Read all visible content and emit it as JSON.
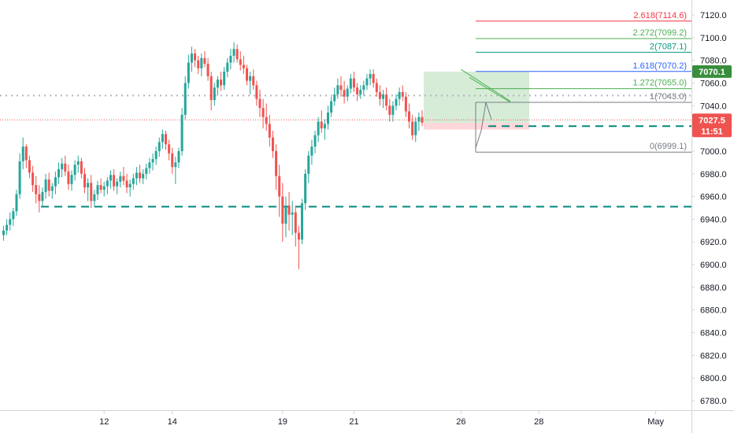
{
  "chart_data": {
    "type": "candlestick",
    "colors": {
      "up": "#26a69a",
      "down": "#ef5350",
      "fib_red": "#f23645",
      "fib_green": "#4caf50",
      "fib_blue": "#2962ff",
      "fib_teal": "#089981",
      "fib_gray": "#787b86",
      "dashed_level": "#00897b",
      "target_zone": "#c8e6c9",
      "stop_zone": "#ffcdd2",
      "last_price": "#ef5350",
      "target_badge": "#388e3c"
    },
    "y_ticks": [
      "7120.0",
      "7100.0",
      "7080.0",
      "7060.0",
      "7040.0",
      "7020.0",
      "7000.0",
      "6980.0",
      "6960.0",
      "6940.0",
      "6920.0",
      "6900.0",
      "6880.0",
      "6860.0",
      "6840.0",
      "6820.0",
      "6800.0",
      "6780.0"
    ],
    "ylim": [
      6771,
      7135
    ],
    "x_ticks": [
      {
        "label": "12",
        "bar": 31
      },
      {
        "label": "14",
        "bar": 52
      },
      {
        "label": "19",
        "bar": 86
      },
      {
        "label": "21",
        "bar": 108
      },
      {
        "label": "26",
        "bar": 141
      },
      {
        "label": "28",
        "bar": 165
      },
      {
        "label": "May",
        "bar": 201
      }
    ],
    "bar_count": 238,
    "fib_levels": [
      {
        "ratio": "2.618",
        "value": "7114.6",
        "label": "2.618(7114.6)",
        "color": "fib_red"
      },
      {
        "ratio": "2.272",
        "value": "7099.2",
        "label": "2.272(7099.2)",
        "color": "fib_green"
      },
      {
        "ratio": "2",
        "value": "7087.1",
        "label": "2(7087.1)",
        "color": "fib_teal"
      },
      {
        "ratio": "1.618",
        "value": "7070.2",
        "label": "1.618(7070.2)",
        "color": "fib_blue"
      },
      {
        "ratio": "1.272",
        "value": "7055.0",
        "label": "1.272(7055.0)",
        "color": "fib_green"
      },
      {
        "ratio": "1",
        "value": "7043.0",
        "label": "1(7043.0)",
        "color": "fib_gray"
      },
      {
        "ratio": "0",
        "value": "6999.1",
        "label": "0(6999.1)",
        "color": "fib_gray"
      }
    ],
    "extra_fib_line_value": 7134,
    "dashed_levels": [
      6951,
      7022
    ],
    "dotted_level": 7049,
    "last_price": {
      "value": 7027.5,
      "price_text": "7027.5",
      "countdown": "11:51"
    },
    "target": {
      "value": 7070.1,
      "text": "7070.1"
    },
    "trendline": {
      "from_bar": 141,
      "from_price": 7072,
      "to_bar": 166,
      "to_price": 7044
    },
    "candles": [
      [
        6926,
        6934,
        6921,
        6930
      ],
      [
        6930,
        6940,
        6926,
        6935
      ],
      [
        6935,
        6946,
        6930,
        6940
      ],
      [
        6940,
        6950,
        6934,
        6947
      ],
      [
        6947,
        6966,
        6943,
        6962
      ],
      [
        6962,
        6998,
        6958,
        6991
      ],
      [
        6991,
        7012,
        6984,
        7004
      ],
      [
        7004,
        7006,
        6985,
        6992
      ],
      [
        6992,
        6996,
        6976,
        6981
      ],
      [
        6981,
        6987,
        6964,
        6970
      ],
      [
        6970,
        6978,
        6954,
        6962
      ],
      [
        6962,
        6970,
        6946,
        6956
      ],
      [
        6956,
        6968,
        6952,
        6964
      ],
      [
        6964,
        6980,
        6958,
        6975
      ],
      [
        6975,
        6981,
        6960,
        6965
      ],
      [
        6965,
        6972,
        6958,
        6969
      ],
      [
        6969,
        6982,
        6962,
        6977
      ],
      [
        6977,
        6990,
        6971,
        6984
      ],
      [
        6984,
        6994,
        6977,
        6989
      ],
      [
        6989,
        6996,
        6978,
        6982
      ],
      [
        6982,
        6988,
        6966,
        6971
      ],
      [
        6971,
        6983,
        6965,
        6979
      ],
      [
        6979,
        6992,
        6974,
        6988
      ],
      [
        6988,
        6996,
        6981,
        6991
      ],
      [
        6991,
        6994,
        6976,
        6980
      ],
      [
        6980,
        6985,
        6963,
        6968
      ],
      [
        6968,
        6976,
        6956,
        6972
      ],
      [
        6972,
        6979,
        6950,
        6956
      ],
      [
        6956,
        6966,
        6951,
        6962
      ],
      [
        6962,
        6974,
        6957,
        6970
      ],
      [
        6970,
        6976,
        6963,
        6966
      ],
      [
        6966,
        6973,
        6960,
        6969
      ],
      [
        6969,
        6977,
        6962,
        6974
      ],
      [
        6974,
        6983,
        6967,
        6979
      ],
      [
        6979,
        6984,
        6965,
        6969
      ],
      [
        6969,
        6976,
        6962,
        6973
      ],
      [
        6973,
        6982,
        6968,
        6978
      ],
      [
        6978,
        6986,
        6970,
        6974
      ],
      [
        6974,
        6980,
        6963,
        6968
      ],
      [
        6968,
        6975,
        6960,
        6971
      ],
      [
        6971,
        6980,
        6966,
        6976
      ],
      [
        6976,
        6986,
        6970,
        6981
      ],
      [
        6981,
        6988,
        6972,
        6976
      ],
      [
        6976,
        6984,
        6971,
        6980
      ],
      [
        6980,
        6989,
        6975,
        6985
      ],
      [
        6985,
        6994,
        6980,
        6990
      ],
      [
        6990,
        6998,
        6983,
        6993
      ],
      [
        6993,
        7004,
        6988,
        7000
      ],
      [
        7000,
        7012,
        6995,
        7008
      ],
      [
        7008,
        7019,
        7002,
        7015
      ],
      [
        7015,
        7018,
        7001,
        7006
      ],
      [
        7006,
        7010,
        6992,
        6998
      ],
      [
        6998,
        7003,
        6980,
        6986
      ],
      [
        6986,
        6995,
        6971,
        6990
      ],
      [
        6990,
        7003,
        6985,
        7000
      ],
      [
        7000,
        7038,
        6996,
        7032
      ],
      [
        7032,
        7066,
        7028,
        7060
      ],
      [
        7060,
        7085,
        7055,
        7078
      ],
      [
        7078,
        7092,
        7070,
        7086
      ],
      [
        7086,
        7090,
        7074,
        7080
      ],
      [
        7080,
        7084,
        7068,
        7073
      ],
      [
        7073,
        7086,
        7066,
        7082
      ],
      [
        7082,
        7088,
        7074,
        7077
      ],
      [
        7077,
        7082,
        7062,
        7066
      ],
      [
        7066,
        7070,
        7036,
        7045
      ],
      [
        7045,
        7060,
        7040,
        7056
      ],
      [
        7056,
        7066,
        7049,
        7063
      ],
      [
        7063,
        7070,
        7053,
        7058
      ],
      [
        7058,
        7074,
        7054,
        7070
      ],
      [
        7070,
        7082,
        7065,
        7078
      ],
      [
        7078,
        7090,
        7072,
        7084
      ],
      [
        7084,
        7096,
        7078,
        7090
      ],
      [
        7090,
        7094,
        7078,
        7081
      ],
      [
        7081,
        7088,
        7071,
        7076
      ],
      [
        7076,
        7084,
        7068,
        7073
      ],
      [
        7073,
        7076,
        7058,
        7062
      ],
      [
        7062,
        7070,
        7050,
        7066
      ],
      [
        7066,
        7072,
        7054,
        7058
      ],
      [
        7058,
        7062,
        7040,
        7046
      ],
      [
        7046,
        7054,
        7030,
        7038
      ],
      [
        7038,
        7046,
        7020,
        7030
      ],
      [
        7030,
        7042,
        7018,
        7024
      ],
      [
        7024,
        7032,
        7004,
        7012
      ],
      [
        7012,
        7018,
        6994,
        7000
      ],
      [
        7000,
        7006,
        6966,
        6978
      ],
      [
        6978,
        6988,
        6942,
        6960
      ],
      [
        6960,
        6972,
        6920,
        6936
      ],
      [
        6936,
        6960,
        6924,
        6952
      ],
      [
        6952,
        6964,
        6930,
        6944
      ],
      [
        6944,
        6956,
        6926,
        6946
      ],
      [
        6946,
        6952,
        6916,
        6928
      ],
      [
        6928,
        6934,
        6896,
        6922
      ],
      [
        6922,
        6958,
        6918,
        6954
      ],
      [
        6954,
        6984,
        6948,
        6980
      ],
      [
        6980,
        7000,
        6972,
        6996
      ],
      [
        6996,
        7010,
        6988,
        7004
      ],
      [
        7004,
        7018,
        6998,
        7014
      ],
      [
        7014,
        7030,
        7008,
        7026
      ],
      [
        7026,
        7036,
        7016,
        7020
      ],
      [
        7020,
        7028,
        7010,
        7024
      ],
      [
        7024,
        7040,
        7019,
        7034
      ],
      [
        7034,
        7048,
        7030,
        7044
      ],
      [
        7044,
        7056,
        7040,
        7050
      ],
      [
        7050,
        7064,
        7046,
        7058
      ],
      [
        7058,
        7066,
        7048,
        7054
      ],
      [
        7054,
        7062,
        7042,
        7048
      ],
      [
        7048,
        7058,
        7044,
        7055
      ],
      [
        7055,
        7068,
        7051,
        7064
      ],
      [
        7064,
        7070,
        7052,
        7056
      ],
      [
        7056,
        7060,
        7044,
        7050
      ],
      [
        7050,
        7058,
        7046,
        7054
      ],
      [
        7054,
        7062,
        7049,
        7058
      ],
      [
        7058,
        7068,
        7054,
        7064
      ],
      [
        7064,
        7072,
        7058,
        7068
      ],
      [
        7068,
        7072,
        7056,
        7060
      ],
      [
        7060,
        7064,
        7048,
        7052
      ],
      [
        7052,
        7058,
        7040,
        7046
      ],
      [
        7046,
        7054,
        7038,
        7050
      ],
      [
        7050,
        7056,
        7036,
        7040
      ],
      [
        7040,
        7046,
        7026,
        7032
      ],
      [
        7032,
        7044,
        7026,
        7040
      ],
      [
        7040,
        7050,
        7036,
        7046
      ],
      [
        7046,
        7056,
        7040,
        7052
      ],
      [
        7052,
        7058,
        7044,
        7048
      ],
      [
        7048,
        7052,
        7030,
        7035
      ],
      [
        7035,
        7042,
        7020,
        7026
      ],
      [
        7026,
        7032,
        7010,
        7014
      ],
      [
        7014,
        7030,
        7008,
        7026
      ],
      [
        7026,
        7034,
        7018,
        7030
      ],
      [
        7030,
        7036,
        7022,
        7025
      ]
    ]
  }
}
